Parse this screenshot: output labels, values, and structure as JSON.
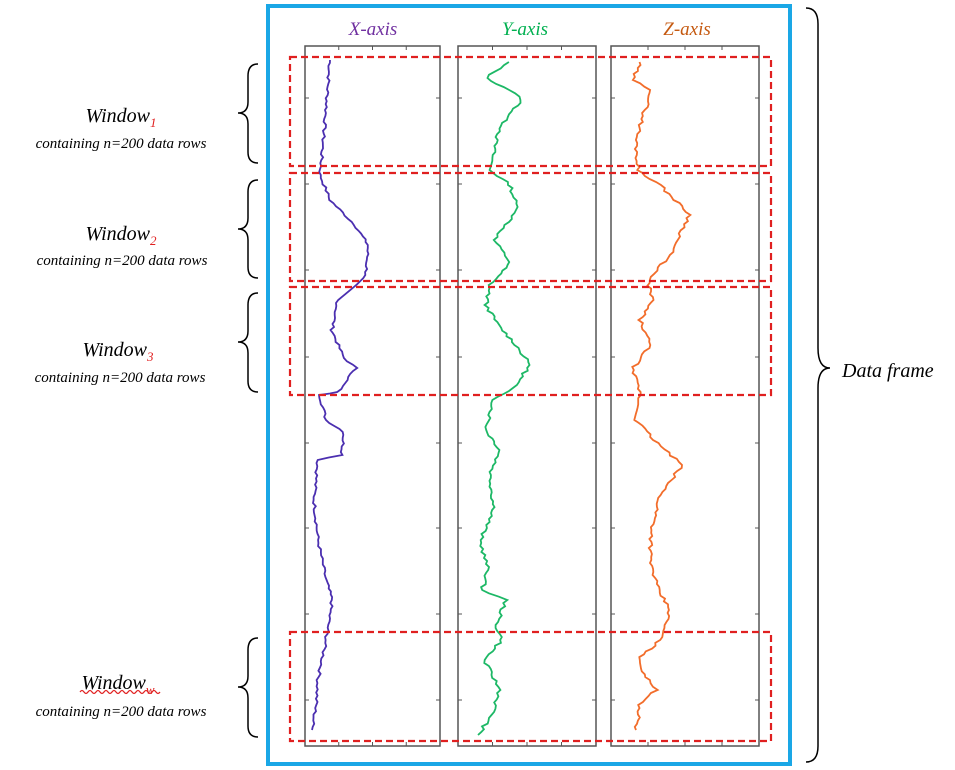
{
  "frame_label": "Data frame",
  "axes": [
    {
      "label": "X-axis",
      "color": "#7030a0",
      "line_color": "#4b2fb0"
    },
    {
      "label": "Y-axis",
      "color": "#00b050",
      "line_color": "#1db866"
    },
    {
      "label": "Z-axis",
      "color": "#c55a11",
      "line_color": "#f26d2b"
    }
  ],
  "windows": [
    {
      "name": "Window",
      "subscript": "1",
      "description": "containing n=200 data rows"
    },
    {
      "name": "Window",
      "subscript": "2",
      "description": "containing n=200 data rows"
    },
    {
      "name": "Window",
      "subscript": "3",
      "description": "containing n=200 data rows"
    },
    {
      "name": "Window",
      "subscript": "w",
      "description": "containing n=200 data rows"
    }
  ],
  "colors": {
    "frame_border": "#1aa7e6",
    "window_box": "#e02020",
    "panel_border": "#555555"
  }
}
